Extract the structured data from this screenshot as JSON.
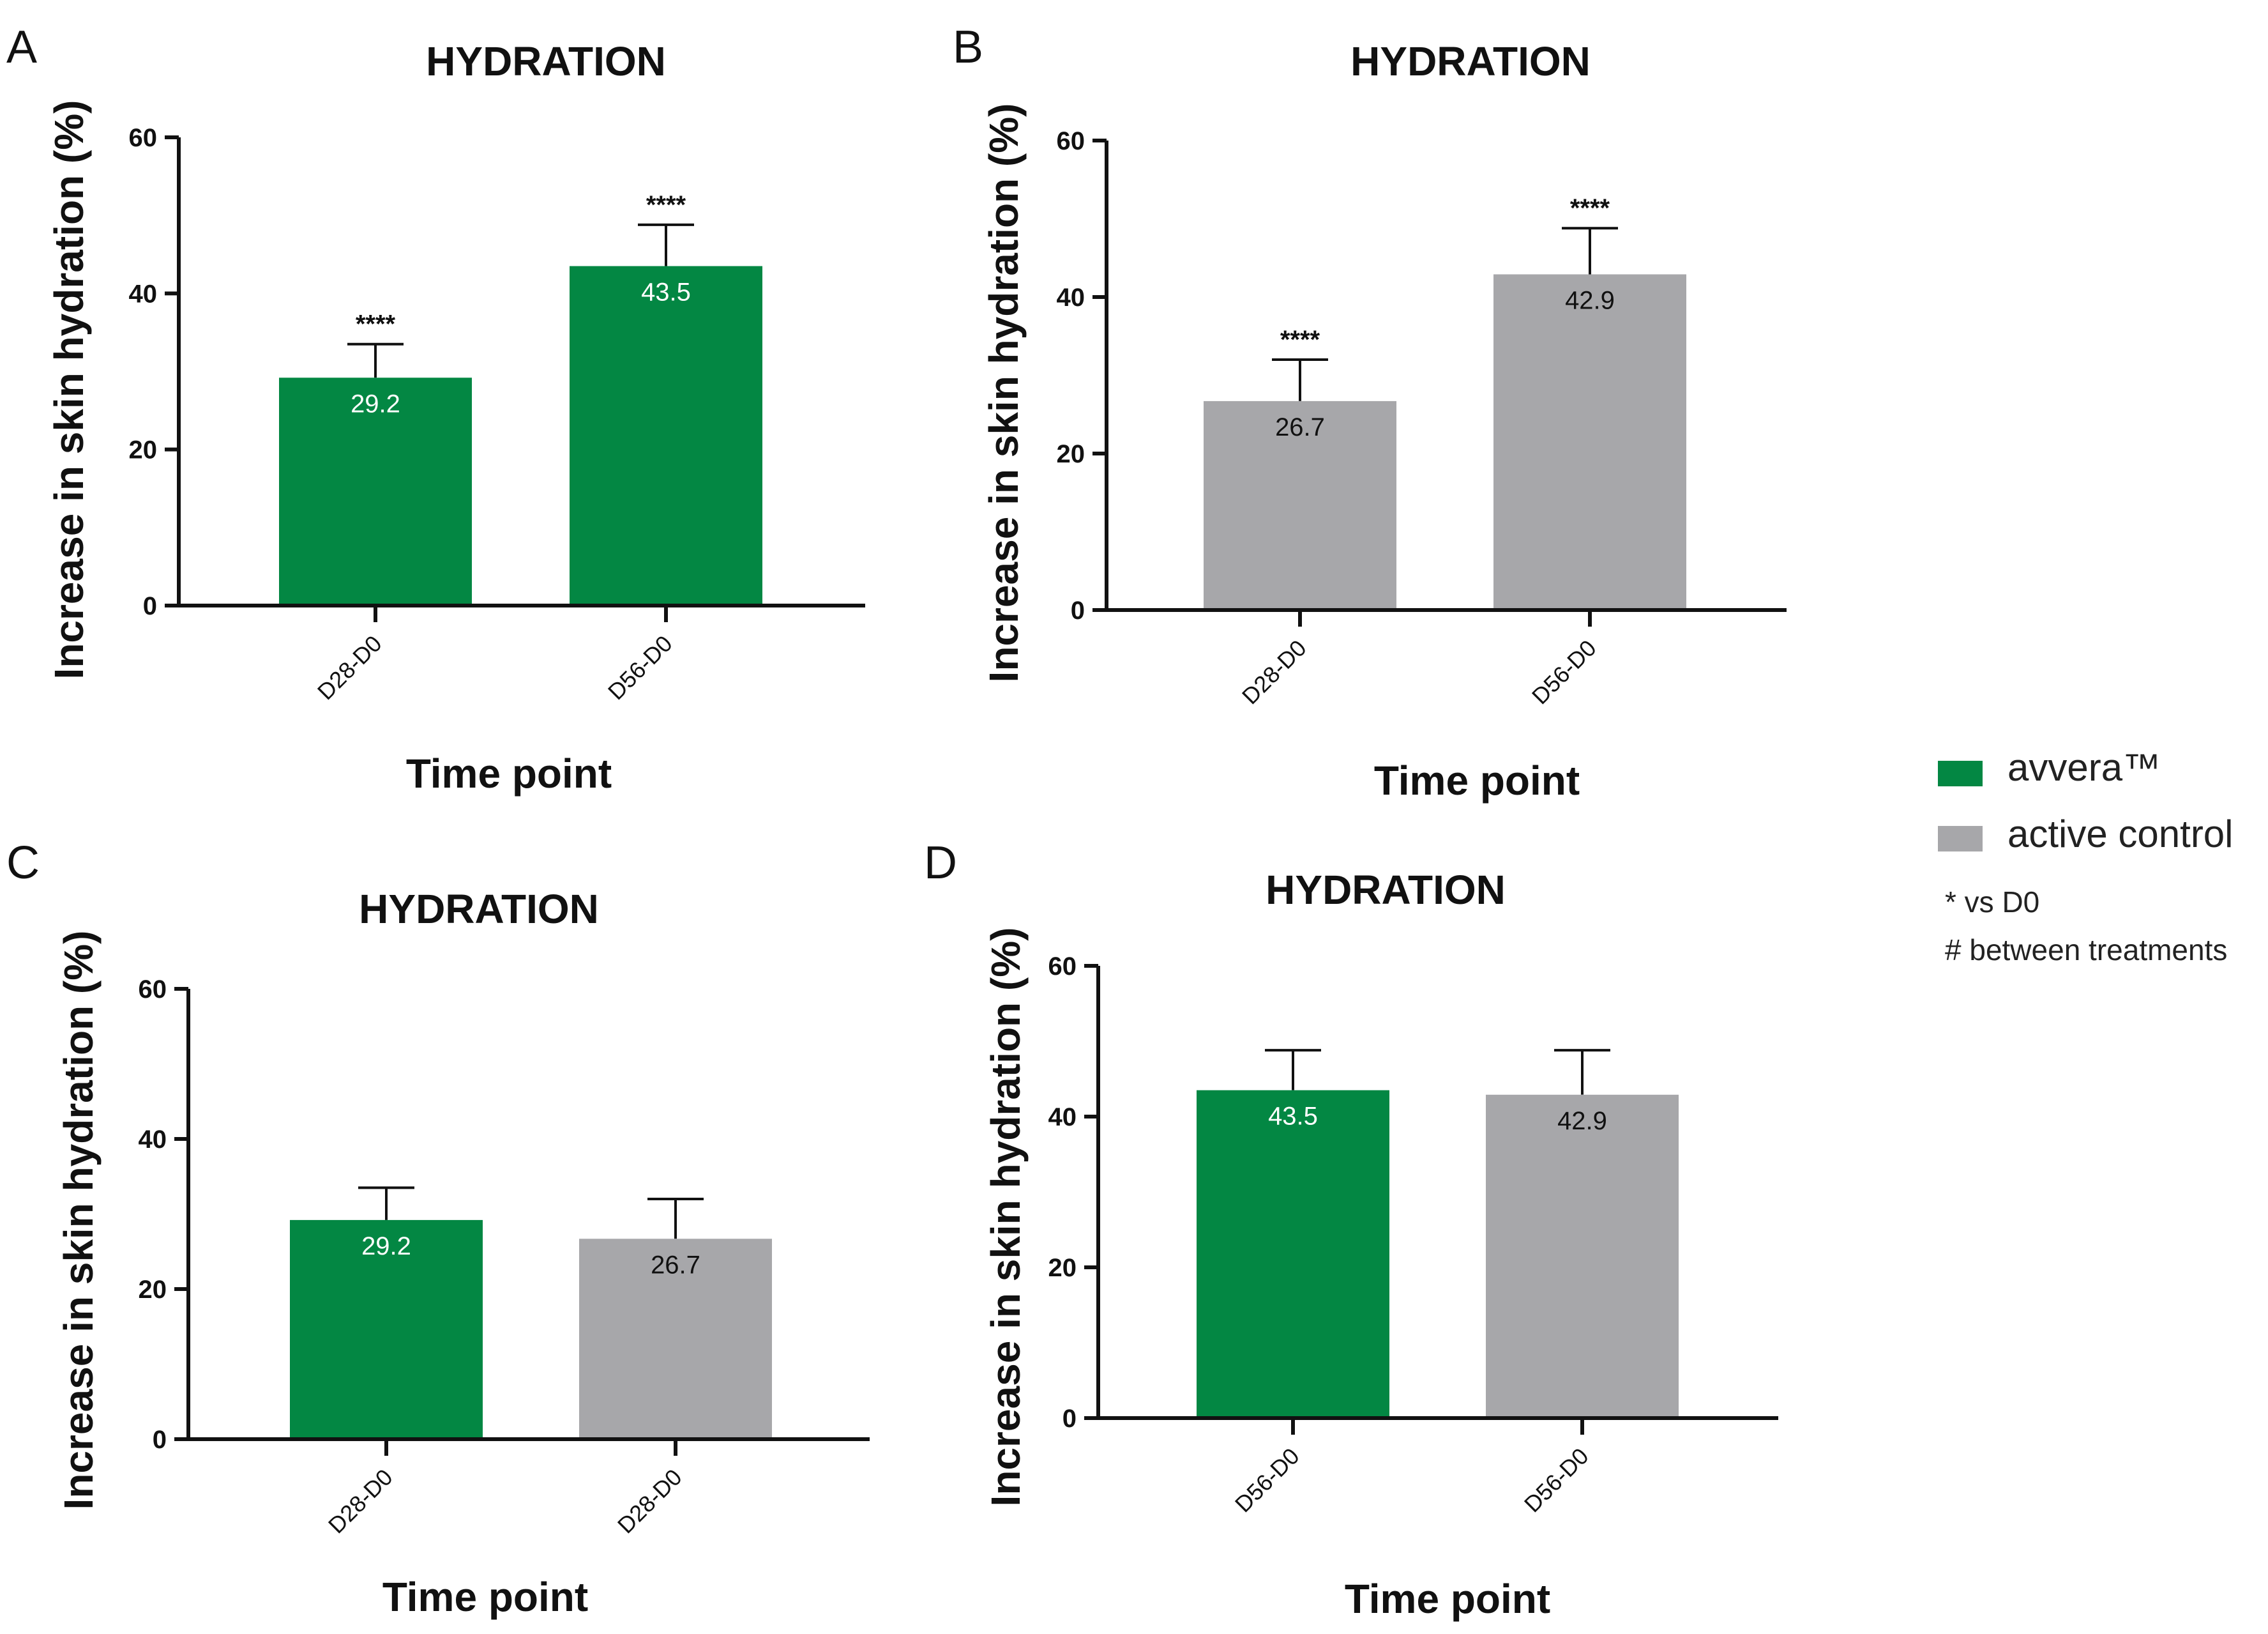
{
  "colors": {
    "avvera": "#038743",
    "active_control": "#a7a7aa",
    "axis": "#111111"
  },
  "legend": {
    "items": [
      {
        "label": "avvera™",
        "color": "#038743"
      },
      {
        "label": "active control",
        "color": "#a7a7aa"
      }
    ],
    "notes": [
      "* vs D0",
      "# between treatments"
    ],
    "placement": "right"
  },
  "chart_data": [
    {
      "panel": "A",
      "type": "bar",
      "title": "HYDRATION",
      "xlabel": "Time point",
      "ylabel": "Increase in skin hydration (%)",
      "ylim": [
        0,
        60
      ],
      "yticks": [
        0,
        20,
        40,
        60
      ],
      "categories": [
        "D28-D0",
        "D56-D0"
      ],
      "values": [
        29.2,
        43.5
      ],
      "errors": [
        4.3,
        5.3
      ],
      "value_labels": [
        "29.2",
        "43.5"
      ],
      "significance": [
        "****",
        "****"
      ],
      "bar_colors": [
        "#038743",
        "#038743"
      ],
      "label_colors": [
        "#ffffff",
        "#ffffff"
      ]
    },
    {
      "panel": "B",
      "type": "bar",
      "title": "HYDRATION",
      "xlabel": "Time point",
      "ylabel": "Increase in skin hydration (%)",
      "ylim": [
        0,
        60
      ],
      "yticks": [
        0,
        20,
        40,
        60
      ],
      "categories": [
        "D28-D0",
        "D56-D0"
      ],
      "values": [
        26.7,
        42.9
      ],
      "errors": [
        5.3,
        5.9
      ],
      "value_labels": [
        "26.7",
        "42.9"
      ],
      "significance": [
        "****",
        "****"
      ],
      "bar_colors": [
        "#a7a7aa",
        "#a7a7aa"
      ],
      "label_colors": [
        "#111111",
        "#111111"
      ]
    },
    {
      "panel": "C",
      "type": "bar",
      "title": "HYDRATION",
      "xlabel": "Time point",
      "ylabel": "Increase in skin hydration (%)",
      "ylim": [
        0,
        60
      ],
      "yticks": [
        0,
        20,
        40,
        60
      ],
      "categories": [
        "D28-D0",
        "D28-D0"
      ],
      "values": [
        29.2,
        26.7
      ],
      "errors": [
        4.3,
        5.3
      ],
      "value_labels": [
        "29.2",
        "26.7"
      ],
      "significance": [
        "",
        ""
      ],
      "bar_colors": [
        "#038743",
        "#a7a7aa"
      ],
      "label_colors": [
        "#ffffff",
        "#111111"
      ]
    },
    {
      "panel": "D",
      "type": "bar",
      "title": "HYDRATION",
      "xlabel": "Time point",
      "ylabel": "Increase in skin hydration (%)",
      "ylim": [
        0,
        60
      ],
      "yticks": [
        0,
        20,
        40,
        60
      ],
      "ytick_labels": [
        "0",
        "20",
        "40",
        "60"
      ],
      "categories": [
        "D56-D0",
        "D56-D0"
      ],
      "values": [
        43.5,
        42.9
      ],
      "errors": [
        5.3,
        5.9
      ],
      "value_labels": [
        "43.5",
        "42.9"
      ],
      "significance": [
        "",
        ""
      ],
      "bar_colors": [
        "#038743",
        "#a7a7aa"
      ],
      "label_colors": [
        "#ffffff",
        "#111111"
      ]
    }
  ]
}
